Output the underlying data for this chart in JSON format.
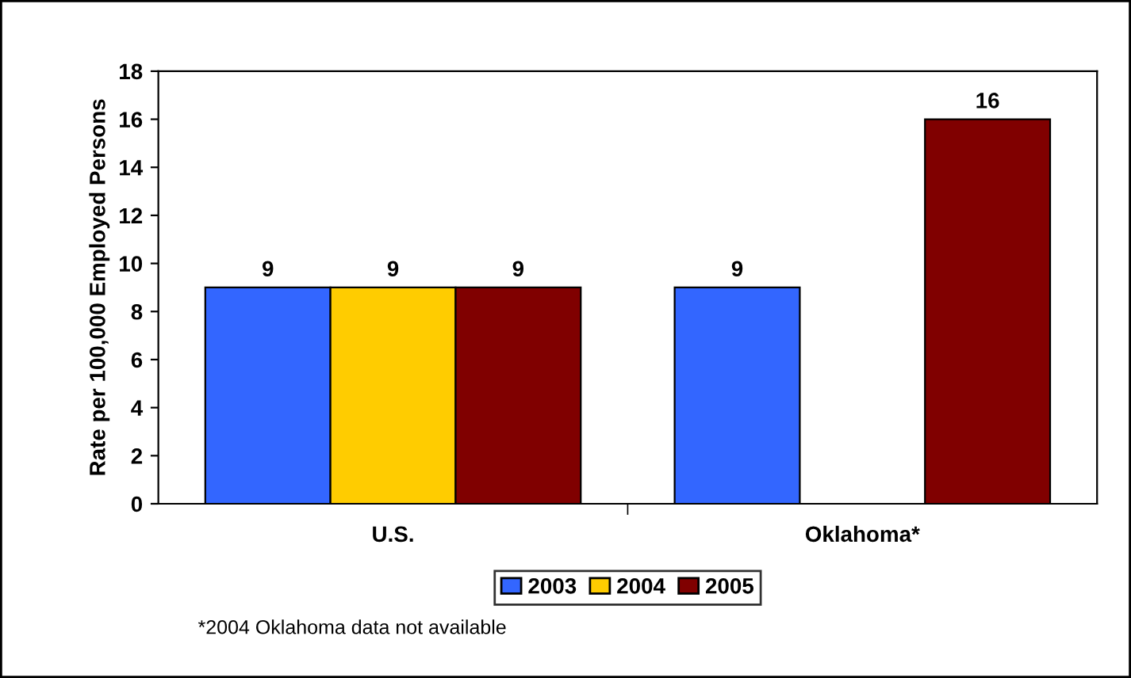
{
  "chart_data": {
    "type": "bar",
    "ylabel": "Rate per 100,000 Employed Persons",
    "categories": [
      "U.S.",
      "Oklahoma*"
    ],
    "series": [
      {
        "name": "2003",
        "color": "#3366ff",
        "values": [
          9,
          9
        ]
      },
      {
        "name": "2004",
        "color": "#ffcc00",
        "values": [
          9,
          null
        ]
      },
      {
        "name": "2005",
        "color": "#800000",
        "values": [
          9,
          16
        ]
      }
    ],
    "ylim": [
      0,
      18
    ],
    "yticks": [
      0,
      2,
      4,
      6,
      8,
      10,
      12,
      14,
      16,
      18
    ],
    "data_labels": true,
    "legend": "bottom",
    "grid": false,
    "annotations": [
      "*2004 Oklahoma data not available"
    ]
  }
}
